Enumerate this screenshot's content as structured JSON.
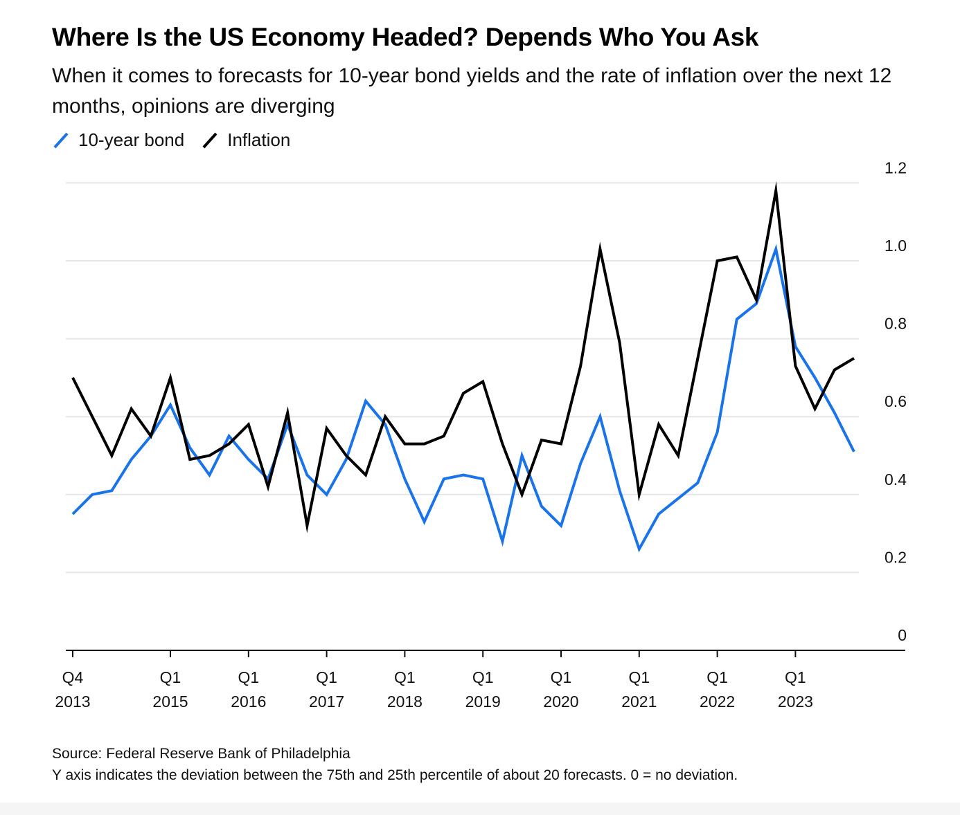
{
  "chart_data": {
    "type": "line",
    "title": "Where Is the US Economy Headed? Depends Who You Ask",
    "subtitle": "When it comes to forecasts for 10-year bond yields and the rate of inflation over the next 12 months, opinions are diverging",
    "legend": {
      "placement": "top-left",
      "items": [
        {
          "label": "10-year bond",
          "color": "#1a73e8"
        },
        {
          "label": "Inflation",
          "color": "#000000"
        }
      ]
    },
    "x": [
      "2013Q4",
      "2014Q1",
      "2014Q2",
      "2014Q3",
      "2014Q4",
      "2015Q1",
      "2015Q2",
      "2015Q3",
      "2015Q4",
      "2016Q1",
      "2016Q2",
      "2016Q3",
      "2016Q4",
      "2017Q1",
      "2017Q2",
      "2017Q3",
      "2017Q4",
      "2018Q1",
      "2018Q2",
      "2018Q3",
      "2018Q4",
      "2019Q1",
      "2019Q2",
      "2019Q3",
      "2019Q4",
      "2020Q1",
      "2020Q2",
      "2020Q3",
      "2020Q4",
      "2021Q1",
      "2021Q2",
      "2021Q3",
      "2021Q4",
      "2022Q1",
      "2022Q2",
      "2022Q3",
      "2022Q4",
      "2023Q1",
      "2023Q2",
      "2023Q3",
      "2023Q4"
    ],
    "series": [
      {
        "name": "10-year bond",
        "color": "#1a73e8",
        "values": [
          0.35,
          0.4,
          0.41,
          0.49,
          0.55,
          0.63,
          0.52,
          0.45,
          0.55,
          0.49,
          0.44,
          0.58,
          0.45,
          0.4,
          0.49,
          0.64,
          0.58,
          0.44,
          0.33,
          0.44,
          0.45,
          0.44,
          0.28,
          0.5,
          0.37,
          0.32,
          0.48,
          0.6,
          0.41,
          0.26,
          0.35,
          0.39,
          0.43,
          0.56,
          0.85,
          0.89,
          1.03,
          0.78,
          0.7,
          0.61,
          0.51
        ]
      },
      {
        "name": "Inflation",
        "color": "#000000",
        "values": [
          0.7,
          0.6,
          0.5,
          0.62,
          0.55,
          0.7,
          0.49,
          0.5,
          0.53,
          0.58,
          0.42,
          0.61,
          0.32,
          0.57,
          0.5,
          0.45,
          0.6,
          0.53,
          0.53,
          0.55,
          0.66,
          0.69,
          0.53,
          0.4,
          0.54,
          0.53,
          0.73,
          1.03,
          0.79,
          0.4,
          0.58,
          0.5,
          0.75,
          1.0,
          1.01,
          0.9,
          1.18,
          0.73,
          0.62,
          0.72,
          0.75
        ]
      }
    ],
    "y_axis": {
      "ylim": [
        0,
        1.2
      ],
      "ticks": [
        "0",
        "0.2",
        "0.4",
        "0.6",
        "0.8",
        "1.0",
        "1.2"
      ],
      "position": "right",
      "grid": true
    },
    "x_axis": {
      "tick_labels": [
        {
          "quarter": "2013Q4",
          "line1": "Q4",
          "line2": "2013"
        },
        {
          "quarter": "2015Q1",
          "line1": "Q1",
          "line2": "2015"
        },
        {
          "quarter": "2016Q1",
          "line1": "Q1",
          "line2": "2016"
        },
        {
          "quarter": "2017Q1",
          "line1": "Q1",
          "line2": "2017"
        },
        {
          "quarter": "2018Q1",
          "line1": "Q1",
          "line2": "2018"
        },
        {
          "quarter": "2019Q1",
          "line1": "Q1",
          "line2": "2019"
        },
        {
          "quarter": "2020Q1",
          "line1": "Q1",
          "line2": "2020"
        },
        {
          "quarter": "2021Q1",
          "line1": "Q1",
          "line2": "2021"
        },
        {
          "quarter": "2022Q1",
          "line1": "Q1",
          "line2": "2022"
        },
        {
          "quarter": "2023Q1",
          "line1": "Q1",
          "line2": "2023"
        }
      ]
    }
  },
  "footer": {
    "source": "Source: Federal Reserve Bank of Philadelphia",
    "note": "Y axis indicates the deviation between the 75th and 25th percentile of about 20 forecasts. 0 = no deviation."
  }
}
